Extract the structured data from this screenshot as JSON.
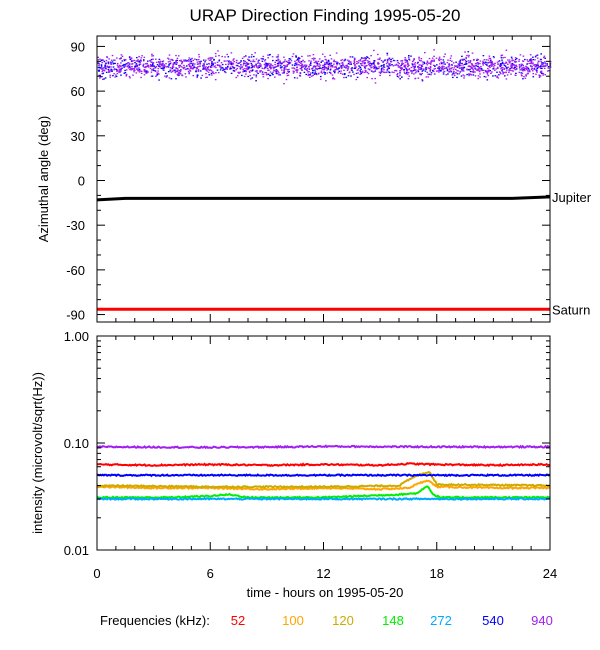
{
  "chart_data": [
    {
      "type": "scatter",
      "title": "URAP Direction Finding  1995-05-20",
      "xlabel": "",
      "ylabel": "Azimuthal angle (deg)",
      "xlim": [
        0,
        24
      ],
      "ylim": [
        -95,
        97
      ],
      "x_ticks": [
        0,
        6,
        12,
        18,
        24
      ],
      "y_ticks": [
        90,
        60,
        30,
        0,
        -30,
        -60,
        -90
      ],
      "y_tick_labels": [
        "90",
        "60",
        "30",
        "0",
        "-30",
        "-60",
        "-90"
      ],
      "scatter_band": {
        "center": 77,
        "spread": 9,
        "colors": [
          "#a020f0",
          "#0000ff"
        ]
      },
      "reference_lines": [
        {
          "name": "Jupiter",
          "color": "#000000",
          "x": [
            0,
            1.5,
            22,
            24
          ],
          "y": [
            -13,
            -12,
            -12,
            -11
          ]
        },
        {
          "name": "Saturn",
          "color": "#ff0000",
          "x": [
            0,
            24
          ],
          "y": [
            -86.5,
            -86.5
          ]
        }
      ]
    },
    {
      "type": "line",
      "title": "",
      "xlabel": "time - hours on 1995-05-20",
      "ylabel": "intensity (microvolt/sqrt(Hz))",
      "xlim": [
        0,
        24
      ],
      "ylim": [
        0.01,
        1.0
      ],
      "y_scale": "log",
      "x_ticks": [
        0,
        6,
        12,
        18,
        24
      ],
      "x_tick_labels": [
        "0",
        "6",
        "12",
        "18",
        "24"
      ],
      "y_ticks": [
        1.0,
        0.1,
        0.01
      ],
      "y_tick_labels": [
        "1.00",
        "0.10",
        "0.01"
      ],
      "legend_title": "Frequencies (kHz):",
      "legend_position": "bottom",
      "series": [
        {
          "name": "52",
          "color": "#ff0000",
          "x": [
            0,
            3,
            6,
            9,
            12,
            15,
            16.5,
            18,
            21,
            24
          ],
          "y": [
            0.063,
            0.062,
            0.063,
            0.062,
            0.063,
            0.062,
            0.064,
            0.063,
            0.062,
            0.063
          ]
        },
        {
          "name": "100",
          "color": "#ffa500",
          "x": [
            0,
            3,
            6,
            9,
            12,
            15,
            16.5,
            17.5,
            18,
            21,
            24
          ],
          "y": [
            0.039,
            0.038,
            0.038,
            0.037,
            0.038,
            0.037,
            0.038,
            0.045,
            0.039,
            0.038,
            0.038
          ]
        },
        {
          "name": "120",
          "color": "#ccaa00",
          "x": [
            0,
            6,
            12,
            16,
            17,
            17.6,
            18,
            24
          ],
          "y": [
            0.04,
            0.039,
            0.039,
            0.04,
            0.05,
            0.054,
            0.041,
            0.04
          ]
        },
        {
          "name": "148",
          "color": "#00ee00",
          "x": [
            0,
            4,
            6,
            7,
            8,
            12,
            16,
            17,
            17.5,
            17.8,
            18.2,
            24
          ],
          "y": [
            0.031,
            0.031,
            0.032,
            0.033,
            0.031,
            0.031,
            0.033,
            0.034,
            0.04,
            0.033,
            0.031,
            0.031
          ]
        },
        {
          "name": "272",
          "color": "#00aaff",
          "x": [
            0,
            6,
            12,
            18,
            24
          ],
          "y": [
            0.03,
            0.03,
            0.03,
            0.03,
            0.03
          ]
        },
        {
          "name": "540",
          "color": "#0000ff",
          "x": [
            0,
            6,
            10.5,
            12,
            18,
            24
          ],
          "y": [
            0.05,
            0.05,
            0.05,
            0.05,
            0.05,
            0.05
          ]
        },
        {
          "name": "940",
          "color": "#a020f0",
          "x": [
            0,
            6,
            10.4,
            12,
            18,
            24
          ],
          "y": [
            0.092,
            0.091,
            0.092,
            0.093,
            0.092,
            0.092
          ]
        }
      ]
    }
  ]
}
